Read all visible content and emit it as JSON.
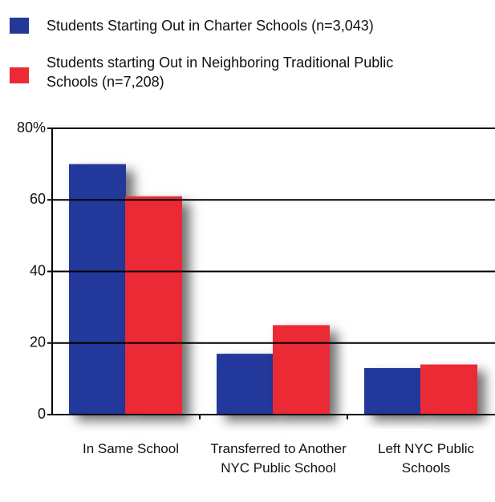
{
  "chart_data": {
    "type": "bar",
    "categories": [
      "In Same School",
      "Transferred to Another NYC Public School",
      "Left NYC Public Schools"
    ],
    "series": [
      {
        "name": "Students Starting Out in Charter Schools (n=3,043)",
        "color": "#22399a",
        "values": [
          70,
          17,
          13
        ]
      },
      {
        "name": "Students starting Out in Neighboring Traditional Public Schools (n=7,208)",
        "color": "#ec2a35",
        "values": [
          61,
          25,
          14
        ]
      }
    ],
    "ylim": [
      0,
      80
    ],
    "yticks": [
      0,
      20,
      40,
      60,
      {
        "value": 80,
        "label": "80%"
      }
    ],
    "grid": true
  }
}
